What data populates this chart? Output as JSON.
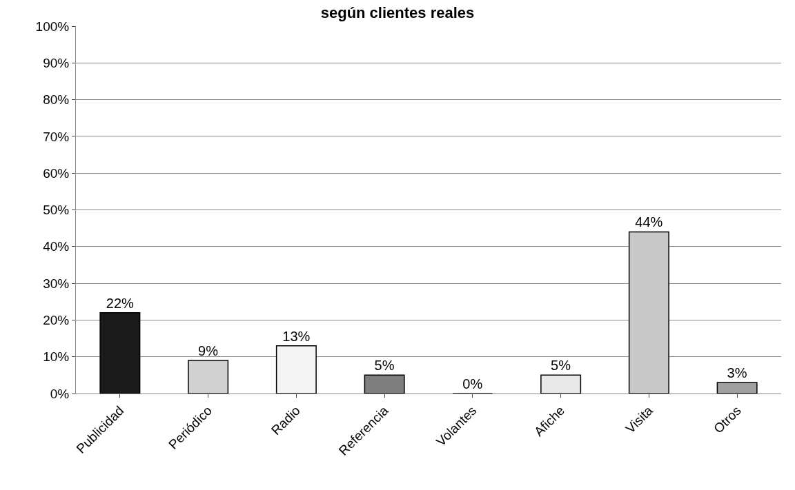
{
  "chart_data": {
    "type": "bar",
    "title": "según clientes reales",
    "categories": [
      "Publicidad",
      "Periódico",
      "Radio",
      "Referencia",
      "Volantes",
      "Afiche",
      "Visita",
      "Otros"
    ],
    "values": [
      22,
      9,
      13,
      5,
      0,
      5,
      44,
      3
    ],
    "colors": [
      "#1a1a1a",
      "#d0d0d0",
      "#f4f4f4",
      "#7f7f7f",
      "#000000",
      "#e8e8e8",
      "#c8c8c8",
      "#a0a0a0"
    ],
    "value_labels": [
      "22%",
      "9%",
      "13%",
      "5%",
      "0%",
      "5%",
      "44%",
      "3%"
    ],
    "ylim": [
      0,
      100
    ],
    "yticks": [
      {
        "value": 0,
        "label": "0%"
      },
      {
        "value": 10,
        "label": "10%"
      },
      {
        "value": 20,
        "label": "20%"
      },
      {
        "value": 30,
        "label": "30%"
      },
      {
        "value": 40,
        "label": "40%"
      },
      {
        "value": 50,
        "label": "50%"
      },
      {
        "value": 60,
        "label": "60%"
      },
      {
        "value": 70,
        "label": "70%"
      },
      {
        "value": 80,
        "label": "80%"
      },
      {
        "value": 90,
        "label": "90%"
      },
      {
        "value": 100,
        "label": "100%"
      }
    ],
    "grid": "y",
    "legend": false
  }
}
